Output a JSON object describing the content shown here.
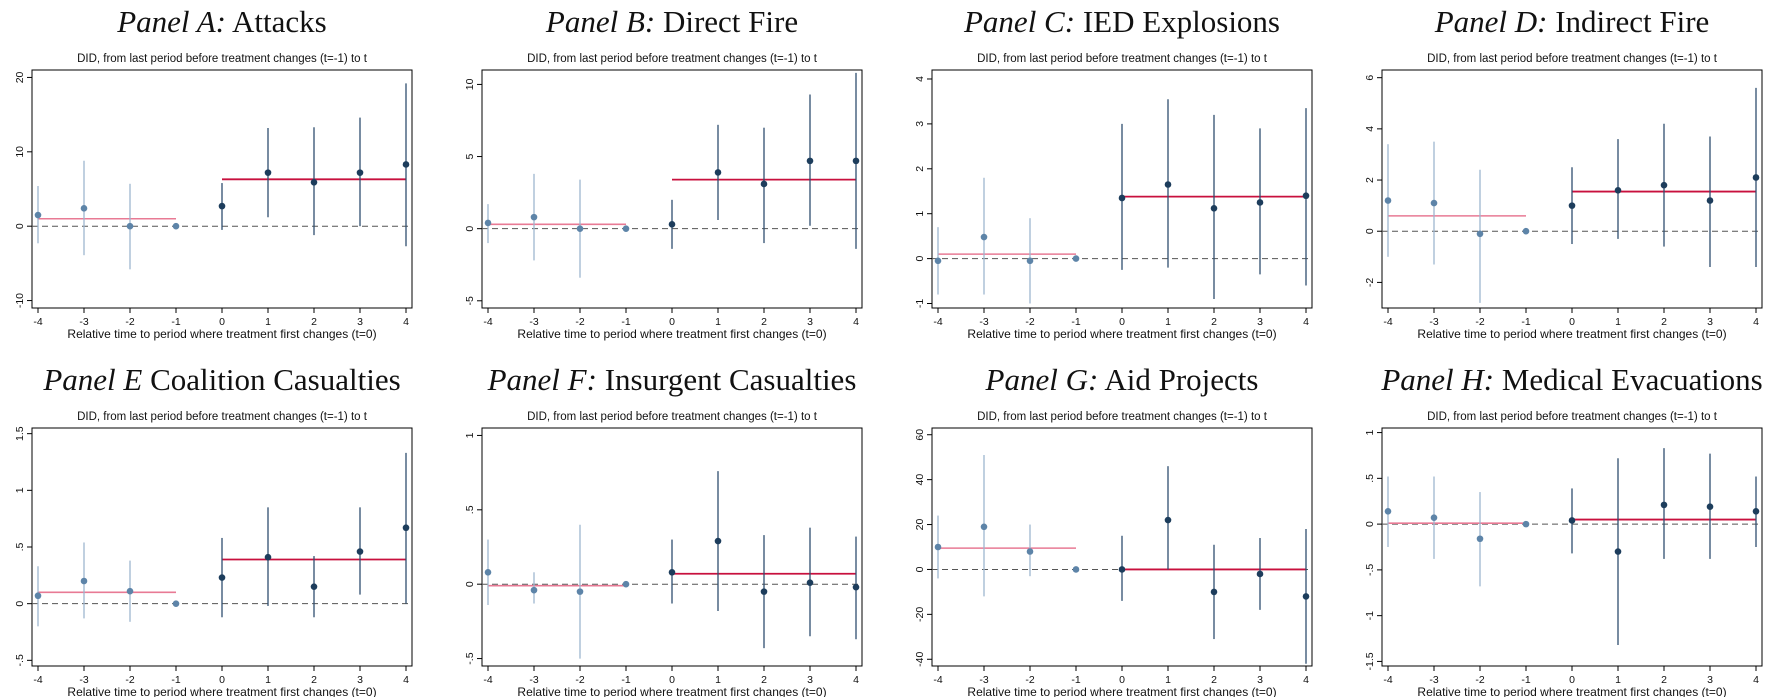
{
  "figure": {
    "colors": {
      "pre_ci": "#9db6cf",
      "post_ci": "#2f4f6f",
      "pre_point": "#5d84a8",
      "post_point": "#1d3d5c",
      "pre_mean": "#e87a94",
      "post_mean": "#c8103e",
      "zero_line": "#555555",
      "frame": "#000000"
    }
  },
  "chart_data": [
    {
      "type": "scatter",
      "panel_prefix": "Panel A:",
      "panel_name": "Attacks",
      "subtitle": "DID, from last period before treatment changes (t=-1) to t",
      "xlabel": "Relative time to period where treatment first changes (t=0)",
      "ylabel": "",
      "x": [
        -4,
        -3,
        -2,
        -1,
        0,
        1,
        2,
        3,
        4
      ],
      "y": [
        1.5,
        2.4,
        0.0,
        0.0,
        2.7,
        7.2,
        5.9,
        7.2,
        8.3
      ],
      "ci_low": [
        -2.3,
        -3.9,
        -5.8,
        0.0,
        -0.5,
        1.2,
        -1.2,
        0.0,
        -2.7
      ],
      "ci_high": [
        5.4,
        8.8,
        5.7,
        0.0,
        5.8,
        13.2,
        13.3,
        14.6,
        19.2
      ],
      "pre_mean": 1.0,
      "post_mean": 6.3,
      "xlim": [
        -4,
        4
      ],
      "ylim": [
        -11,
        21
      ],
      "yticks": [
        -10,
        0,
        10,
        20
      ],
      "ytick_labels": [
        "-10",
        "0",
        "10",
        "20"
      ],
      "xticks": [
        -4,
        -3,
        -2,
        -1,
        0,
        1,
        2,
        3,
        4
      ],
      "xtick_labels": [
        "-4",
        "-3",
        "-2",
        "-1",
        "0",
        "1",
        "2",
        "3",
        "4"
      ]
    },
    {
      "type": "scatter",
      "panel_prefix": "Panel B:",
      "panel_name": "Direct Fire",
      "subtitle": "DID, from last period before treatment changes (t=-1) to t",
      "xlabel": "Relative time to period where treatment first changes (t=0)",
      "ylabel": "",
      "x": [
        -4,
        -3,
        -2,
        -1,
        0,
        1,
        2,
        3,
        4
      ],
      "y": [
        0.4,
        0.8,
        0.0,
        0.0,
        0.3,
        3.9,
        3.1,
        4.7,
        4.7
      ],
      "ci_low": [
        -1.0,
        -2.2,
        -3.4,
        0.0,
        -1.4,
        0.6,
        -1.0,
        0.2,
        -1.4
      ],
      "ci_high": [
        1.7,
        3.8,
        3.4,
        0.0,
        2.0,
        7.2,
        7.0,
        9.3,
        10.8
      ],
      "pre_mean": 0.3,
      "post_mean": 3.4,
      "xlim": [
        -4,
        4
      ],
      "ylim": [
        -5.5,
        11
      ],
      "yticks": [
        -5,
        0,
        5,
        10
      ],
      "ytick_labels": [
        "-5",
        "0",
        "5",
        "10"
      ],
      "xticks": [
        -4,
        -3,
        -2,
        -1,
        0,
        1,
        2,
        3,
        4
      ],
      "xtick_labels": [
        "-4",
        "-3",
        "-2",
        "-1",
        "0",
        "1",
        "2",
        "3",
        "4"
      ]
    },
    {
      "type": "scatter",
      "panel_prefix": "Panel C:",
      "panel_name": "IED Explosions",
      "subtitle": "DID, from last period before treatment changes (t=-1) to t",
      "xlabel": "Relative time to period where treatment first changes (t=0)",
      "ylabel": "",
      "x": [
        -4,
        -3,
        -2,
        -1,
        0,
        1,
        2,
        3,
        4
      ],
      "y": [
        -0.05,
        0.48,
        -0.05,
        0.0,
        1.35,
        1.65,
        1.12,
        1.25,
        1.4
      ],
      "ci_low": [
        -0.8,
        -0.8,
        -1.0,
        0.0,
        -0.25,
        -0.2,
        -0.9,
        -0.35,
        -0.6
      ],
      "ci_high": [
        0.7,
        1.8,
        0.9,
        0.0,
        3.0,
        3.55,
        3.2,
        2.9,
        3.35
      ],
      "pre_mean": 0.1,
      "post_mean": 1.38,
      "xlim": [
        -4,
        4
      ],
      "ylim": [
        -1.1,
        4.2
      ],
      "yticks": [
        -1,
        0,
        1,
        2,
        3,
        4
      ],
      "ytick_labels": [
        "-1",
        "0",
        "1",
        "2",
        "3",
        "4"
      ],
      "xticks": [
        -4,
        -3,
        -2,
        -1,
        0,
        1,
        2,
        3,
        4
      ],
      "xtick_labels": [
        "-4",
        "-3",
        "-2",
        "-1",
        "0",
        "1",
        "2",
        "3",
        "4"
      ]
    },
    {
      "type": "scatter",
      "panel_prefix": "Panel D:",
      "panel_name": "Indirect Fire",
      "subtitle": "DID, from last period before treatment changes (t=-1) to t",
      "xlabel": "Relative time to period where treatment first changes (t=0)",
      "ylabel": "",
      "x": [
        -4,
        -3,
        -2,
        -1,
        0,
        1,
        2,
        3,
        4
      ],
      "y": [
        1.2,
        1.1,
        -0.1,
        0.0,
        1.0,
        1.6,
        1.8,
        1.2,
        2.1
      ],
      "ci_low": [
        -1.0,
        -1.3,
        -2.8,
        0.0,
        -0.5,
        -0.3,
        -0.6,
        -1.4,
        -1.4
      ],
      "ci_high": [
        3.4,
        3.5,
        2.4,
        0.0,
        2.5,
        3.6,
        4.2,
        3.7,
        5.6
      ],
      "pre_mean": 0.6,
      "post_mean": 1.55,
      "xlim": [
        -4,
        4
      ],
      "ylim": [
        -3,
        6.3
      ],
      "yticks": [
        -2,
        0,
        2,
        4,
        6
      ],
      "ytick_labels": [
        "-2",
        "0",
        "2",
        "4",
        "6"
      ],
      "xticks": [
        -4,
        -3,
        -2,
        -1,
        0,
        1,
        2,
        3,
        4
      ],
      "xtick_labels": [
        "-4",
        "-3",
        "-2",
        "-1",
        "0",
        "1",
        "2",
        "3",
        "4"
      ]
    },
    {
      "type": "scatter",
      "panel_prefix": "Panel E",
      "panel_name": "Coalition Casualties",
      "subtitle": "DID, from last period before treatment changes (t=-1) to t",
      "xlabel": "Relative time to period where treatment first changes (t=0)",
      "ylabel": "",
      "x": [
        -4,
        -3,
        -2,
        -1,
        0,
        1,
        2,
        3,
        4
      ],
      "y": [
        0.07,
        0.2,
        0.11,
        0.0,
        0.23,
        0.41,
        0.15,
        0.46,
        0.67
      ],
      "ci_low": [
        -0.2,
        -0.13,
        -0.16,
        0.0,
        -0.12,
        -0.02,
        -0.12,
        0.08,
        0.0
      ],
      "ci_high": [
        0.33,
        0.54,
        0.38,
        0.0,
        0.58,
        0.85,
        0.42,
        0.85,
        1.33
      ],
      "pre_mean": 0.1,
      "post_mean": 0.39,
      "xlim": [
        -4,
        4
      ],
      "ylim": [
        -0.55,
        1.55
      ],
      "yticks": [
        -0.5,
        0,
        0.5,
        1,
        1.5
      ],
      "ytick_labels": [
        "-.5",
        "0",
        ".5",
        "1",
        "1.5"
      ],
      "xticks": [
        -4,
        -3,
        -2,
        -1,
        0,
        1,
        2,
        3,
        4
      ],
      "xtick_labels": [
        "-4",
        "-3",
        "-2",
        "-1",
        "0",
        "1",
        "2",
        "3",
        "4"
      ]
    },
    {
      "type": "scatter",
      "panel_prefix": "Panel F:",
      "panel_name": "Insurgent Casualties",
      "subtitle": "DID, from last period before treatment changes (t=-1) to t",
      "xlabel": "Relative time to period where treatment first changes (t=0)",
      "ylabel": "",
      "x": [
        -4,
        -3,
        -2,
        -1,
        0,
        1,
        2,
        3,
        4
      ],
      "y": [
        0.08,
        -0.04,
        -0.05,
        0.0,
        0.08,
        0.29,
        -0.05,
        0.01,
        -0.02
      ],
      "ci_low": [
        -0.14,
        -0.13,
        -0.5,
        0.0,
        -0.13,
        -0.18,
        -0.43,
        -0.35,
        -0.37
      ],
      "ci_high": [
        0.3,
        0.08,
        0.4,
        0.0,
        0.3,
        0.76,
        0.33,
        0.38,
        0.32
      ],
      "pre_mean": -0.01,
      "post_mean": 0.07,
      "xlim": [
        -4,
        4
      ],
      "ylim": [
        -0.55,
        1.05
      ],
      "yticks": [
        -0.5,
        0,
        0.5,
        1
      ],
      "ytick_labels": [
        "-.5",
        "0",
        ".5",
        "1"
      ],
      "xticks": [
        -4,
        -3,
        -2,
        -1,
        0,
        1,
        2,
        3,
        4
      ],
      "xtick_labels": [
        "-4",
        "-3",
        "-2",
        "-1",
        "0",
        "1",
        "2",
        "3",
        "4"
      ]
    },
    {
      "type": "scatter",
      "panel_prefix": "Panel G:",
      "panel_name": "Aid Projects",
      "subtitle": "DID, from last period before treatment changes (t=-1) to t",
      "xlabel": "Relative time to period where treatment first changes (t=0)",
      "ylabel": "",
      "x": [
        -4,
        -3,
        -2,
        -1,
        0,
        1,
        2,
        3,
        4
      ],
      "y": [
        10,
        19,
        8,
        0,
        0,
        22,
        -10,
        -2,
        -12
      ],
      "ci_low": [
        -4,
        -12,
        -3,
        0,
        -14,
        0,
        -31,
        -18,
        -42
      ],
      "ci_high": [
        24,
        51,
        20,
        0,
        15,
        46,
        11,
        14,
        18
      ],
      "pre_mean": 9.5,
      "post_mean": 0,
      "xlim": [
        -4,
        4
      ],
      "ylim": [
        -43,
        63
      ],
      "yticks": [
        -40,
        -20,
        0,
        20,
        40,
        60
      ],
      "ytick_labels": [
        "-40",
        "-20",
        "0",
        "20",
        "40",
        "60"
      ],
      "xticks": [
        -4,
        -3,
        -2,
        -1,
        0,
        1,
        2,
        3,
        4
      ],
      "xtick_labels": [
        "-4",
        "-3",
        "-2",
        "-1",
        "0",
        "1",
        "2",
        "3",
        "4"
      ]
    },
    {
      "type": "scatter",
      "panel_prefix": "Panel H:",
      "panel_name": "Medical Evacuations",
      "subtitle": "DID, from last period before treatment changes (t=-1) to t",
      "xlabel": "Relative time to period where treatment first changes (t=0)",
      "ylabel": "",
      "x": [
        -4,
        -3,
        -2,
        -1,
        0,
        1,
        2,
        3,
        4
      ],
      "y": [
        0.14,
        0.07,
        -0.16,
        0.0,
        0.04,
        -0.3,
        0.21,
        0.19,
        0.14
      ],
      "ci_low": [
        -0.25,
        -0.38,
        -0.68,
        0.0,
        -0.32,
        -1.32,
        -0.38,
        -0.38,
        -0.25
      ],
      "ci_high": [
        0.52,
        0.52,
        0.35,
        0.0,
        0.39,
        0.72,
        0.83,
        0.77,
        0.52
      ],
      "pre_mean": 0.01,
      "post_mean": 0.05,
      "xlim": [
        -4,
        4
      ],
      "ylim": [
        -1.55,
        1.05
      ],
      "yticks": [
        -1.5,
        -1,
        -0.5,
        0,
        0.5,
        1
      ],
      "ytick_labels": [
        "-1.5",
        "-1",
        "-.5",
        "0",
        ".5",
        "1"
      ],
      "xticks": [
        -4,
        -3,
        -2,
        -1,
        0,
        1,
        2,
        3,
        4
      ],
      "xtick_labels": [
        "-4",
        "-3",
        "-2",
        "-1",
        "0",
        "1",
        "2",
        "3",
        "4"
      ]
    }
  ]
}
